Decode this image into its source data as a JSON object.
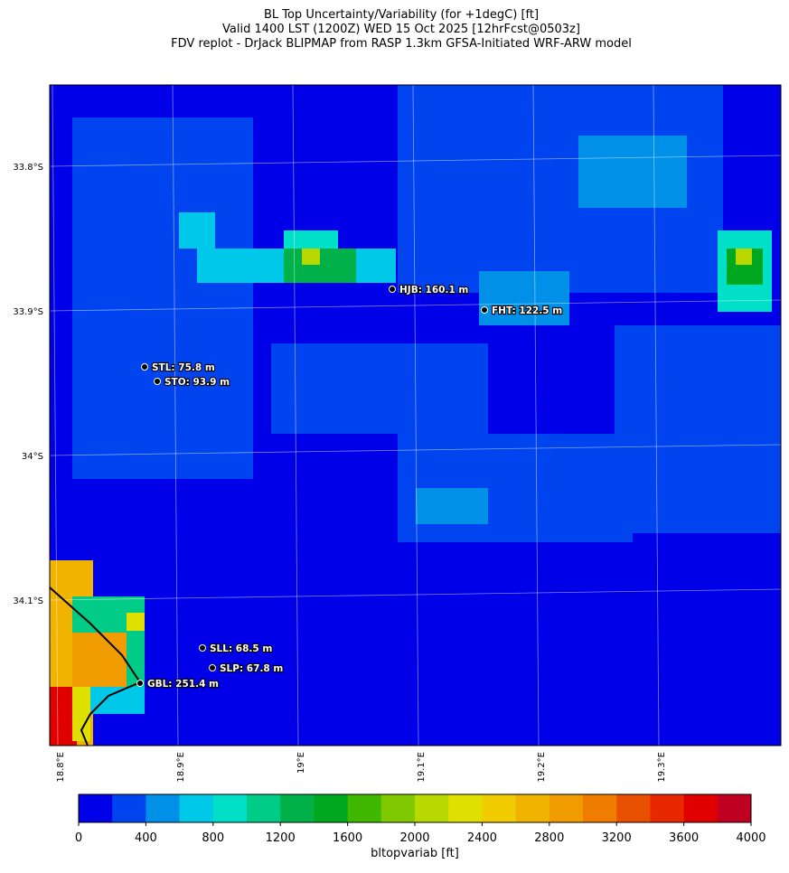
{
  "title": [
    "BL Top Uncertainty/Variability (for +1degC) [ft]",
    "Valid 1400 LST (1200Z) WED 15 Oct 2025 [12hrFcst@0503z]",
    "FDV replot - DrJack BLIPMAP from RASP 1.3km GFSA-Initiated WRF-ARW model"
  ],
  "map": {
    "lat_labels": [
      "33.8°S",
      "33.9°S",
      "34°S",
      "34.1°S"
    ],
    "lon_labels": [
      "18.8°E",
      "18.9°E",
      "19°E",
      "19.1°E",
      "19.2°E",
      "19.3°E"
    ],
    "stations": [
      "HJB: 160.1 m",
      "FHT: 122.5 m",
      "STL: 75.8 m",
      "STO: 93.9 m",
      "SLL: 68.5 m",
      "SLP: 67.8 m",
      "GBL: 251.4 m"
    ]
  },
  "colorbar": {
    "label": "bltopvariab [ft]",
    "lim": [
      0,
      4000
    ],
    "ticks": [
      0,
      400,
      800,
      1200,
      1600,
      2000,
      2400,
      2800,
      3200,
      3600,
      4000
    ],
    "colors": [
      "#0000e8",
      "#0044f0",
      "#0090e8",
      "#00c8e8",
      "#00e0c8",
      "#00cc88",
      "#00b048",
      "#00a820",
      "#40b800",
      "#80c800",
      "#b8d800",
      "#e0e000",
      "#f0cc00",
      "#f0b400",
      "#f09c00",
      "#f07c00",
      "#e85000",
      "#e82800",
      "#e00000",
      "#c00020"
    ]
  }
}
